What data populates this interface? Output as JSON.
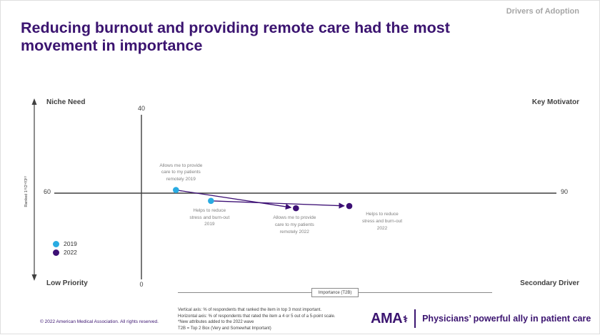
{
  "header": {
    "kicker": "Drivers of Adoption",
    "title": "Reducing burnout and providing remote care had the most movement in importance"
  },
  "chart_data": {
    "type": "scatter",
    "x_axis": {
      "label": "Importance (T2B)",
      "min": 60,
      "max": 90
    },
    "y_axis": {
      "label": "Ranked 1ˢᵗ/2ⁿᵈ/3ʳᵈ",
      "min": 0,
      "max": 40
    },
    "ticks": {
      "top": "40",
      "bottom": "0",
      "left": "60",
      "right": "90"
    },
    "quadrants": {
      "top_left": "Niche Need",
      "top_right": "Key Motivator",
      "bottom_left": "Low Priority",
      "bottom_right": "Secondary Driver"
    },
    "series": [
      {
        "name": "2019",
        "color": "#29abe2"
      },
      {
        "name": "2022",
        "color": "#3d1075"
      }
    ],
    "points": [
      {
        "series": "2019",
        "x": 67.3,
        "y": 21.3,
        "label_lines": [
          "Allows me to provide",
          "care to my patients",
          "remotely 2019"
        ],
        "label_pos": "above"
      },
      {
        "series": "2019",
        "x": 69.4,
        "y": 18.8,
        "label_lines": [
          "Helps to reduce",
          "stress and burn-out",
          "2019"
        ],
        "label_pos": "below"
      },
      {
        "series": "2022",
        "x": 74.5,
        "y": 17.1,
        "label_lines": [
          "Allows me to provide",
          "care to my patients",
          "remotely 2022"
        ],
        "label_pos": "below"
      },
      {
        "series": "2022",
        "x": 77.7,
        "y": 17.6,
        "label_lines": [
          "Helps to reduce",
          "stress and burn-out",
          "2022"
        ],
        "label_pos": "below-right"
      }
    ],
    "arrows": [
      {
        "from": 0,
        "to": 2
      },
      {
        "from": 1,
        "to": 3
      }
    ],
    "arrow_color": "#3d1075"
  },
  "legend": {
    "items": [
      {
        "label": "2019",
        "color": "#29abe2"
      },
      {
        "label": "2022",
        "color": "#3d1075"
      }
    ]
  },
  "footnotes": [
    "Vertical axis: % of respondents that ranked the item in top 3 most important.",
    "Horizontal axis: % of respondents that rated the item a 4 or 5 out of a 5-point scale.",
    "*New attributes added to the 2022 wave",
    "T2B = Top 2 Box (Very and Somewhat Important)"
  ],
  "footer": {
    "copyright": "© 2022 American Medical Association. All rights reserved."
  },
  "brand": {
    "name": "AMA",
    "tagline": "Physicians’ powerful ally in patient care"
  },
  "colors": {
    "title_purple": "#3b1470",
    "kicker_gray": "#a6a6a6",
    "axis_gray": "#404040",
    "point_label_gray": "#7f7f7f"
  }
}
